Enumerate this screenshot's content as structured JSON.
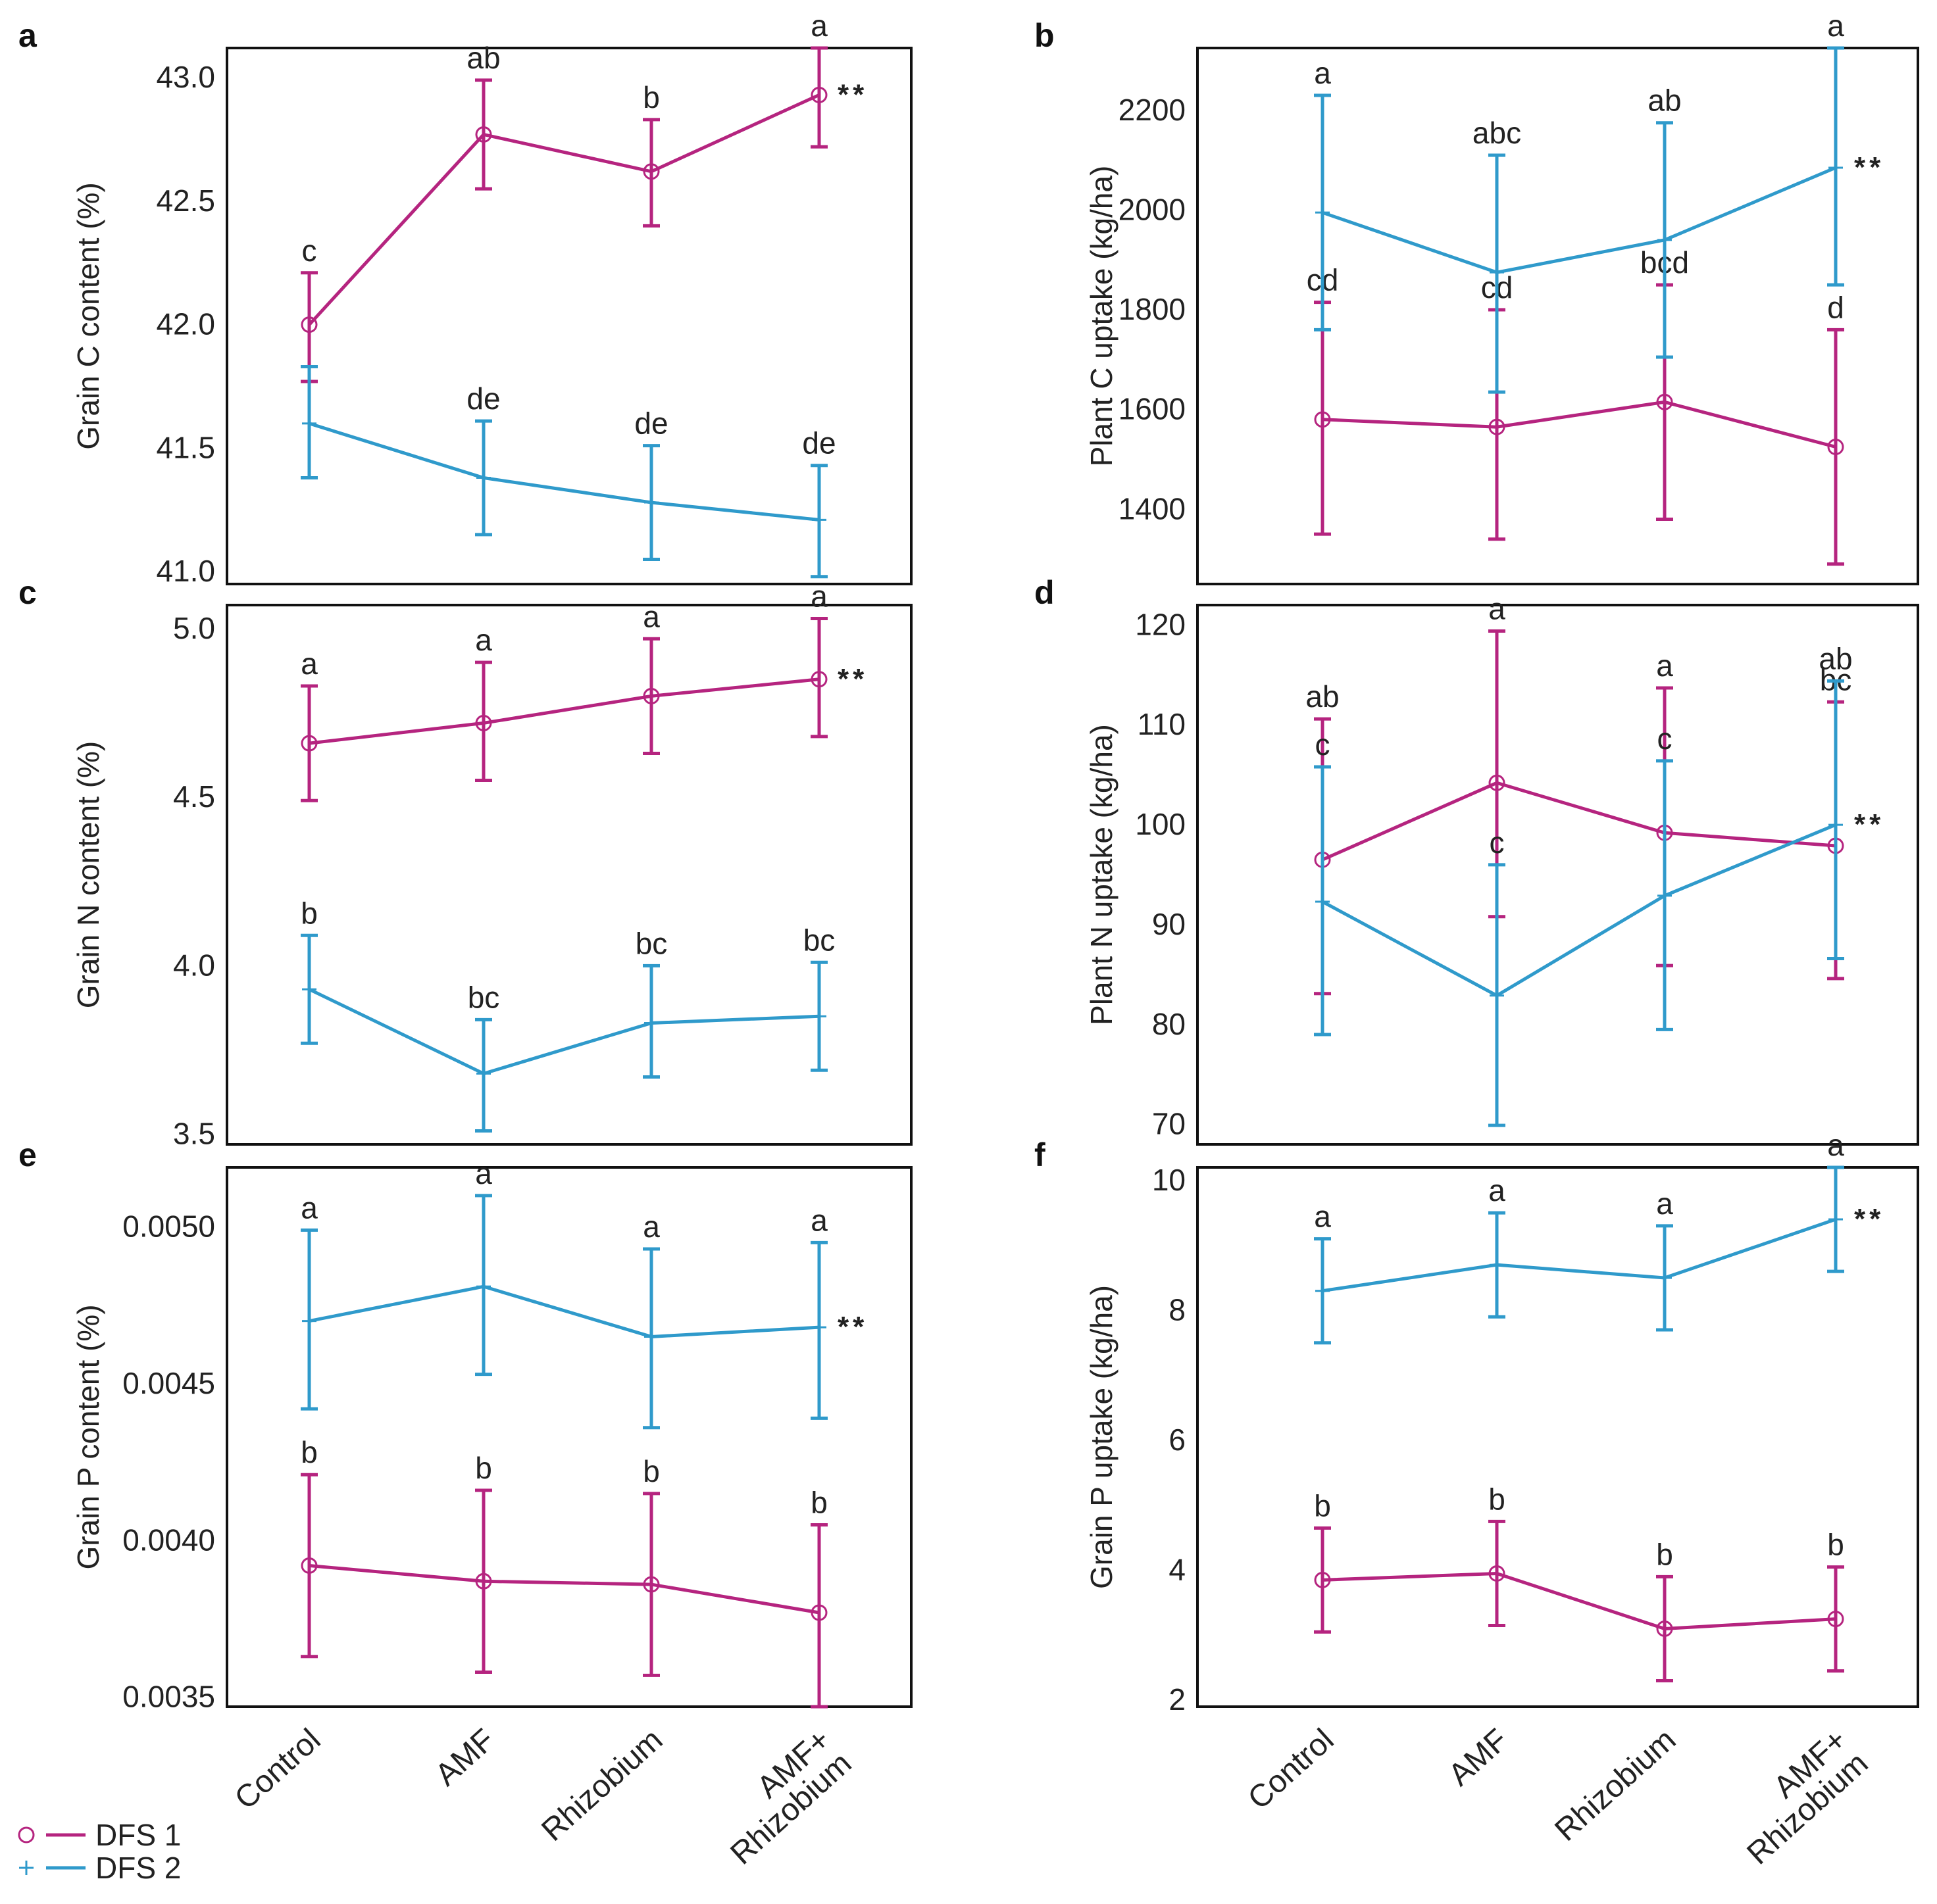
{
  "chart_data": [
    {
      "panel": "a",
      "type": "line",
      "ylabel": "Grain C content (%)",
      "categories": [
        "Control",
        "AMF",
        "Rhizobium",
        "AMF+\nRhizobium"
      ],
      "ylim": [
        40.95,
        43.12
      ],
      "yticks": [
        "41.0",
        "41.5",
        "42.0",
        "42.5",
        "43.0"
      ],
      "series": [
        {
          "name": "DFS 1",
          "values": [
            42.0,
            42.77,
            42.62,
            42.93
          ],
          "err_low": [
            41.77,
            42.55,
            42.4,
            42.72
          ],
          "err_high": [
            42.21,
            42.99,
            42.83,
            43.15
          ],
          "labels": [
            "c",
            "ab",
            "b",
            "a"
          ]
        },
        {
          "name": "DFS 2",
          "values": [
            41.6,
            41.38,
            41.28,
            41.21
          ],
          "err_low": [
            41.38,
            41.15,
            41.05,
            40.98
          ],
          "err_high": [
            41.83,
            41.61,
            41.51,
            41.43
          ],
          "labels": [
            "",
            "de",
            "de",
            "de"
          ]
        }
      ],
      "significance": "**"
    },
    {
      "panel": "b",
      "type": "line",
      "ylabel": "Plant C uptake (kg/ha)",
      "categories": [
        "Control",
        "AMF",
        "Rhizobium",
        "AMF+\nRhizobium"
      ],
      "ylim": [
        1250,
        2325
      ],
      "yticks": [
        "1400",
        "1600",
        "1800",
        "2000",
        "2200"
      ],
      "series": [
        {
          "name": "DFS 1",
          "values": [
            1580,
            1565,
            1615,
            1525
          ],
          "err_low": [
            1350,
            1340,
            1380,
            1290
          ],
          "err_high": [
            1815,
            1800,
            1850,
            1760
          ],
          "labels": [
            "cd",
            "cd",
            "bcd",
            "d"
          ]
        },
        {
          "name": "DFS 2",
          "values": [
            1995,
            1875,
            1940,
            2085
          ],
          "err_low": [
            1760,
            1635,
            1705,
            1850
          ],
          "err_high": [
            2230,
            2110,
            2175,
            2325
          ],
          "labels": [
            "a",
            "abc",
            "ab",
            "a"
          ]
        }
      ],
      "significance": "**"
    },
    {
      "panel": "c",
      "type": "line",
      "ylabel": "Grain N content (%)",
      "categories": [
        "Control",
        "AMF",
        "Rhizobium",
        "AMF+\nRhizobium"
      ],
      "ylim": [
        3.47,
        5.07
      ],
      "yticks": [
        "3.5",
        "4.0",
        "4.5",
        "5.0"
      ],
      "series": [
        {
          "name": "DFS 1",
          "values": [
            4.66,
            4.72,
            4.8,
            4.85
          ],
          "err_low": [
            4.49,
            4.55,
            4.63,
            4.68
          ],
          "err_high": [
            4.83,
            4.9,
            4.97,
            5.03
          ],
          "labels": [
            "a",
            "a",
            "a",
            "a"
          ]
        },
        {
          "name": "DFS 2",
          "values": [
            3.93,
            3.68,
            3.83,
            3.85
          ],
          "err_low": [
            3.77,
            3.51,
            3.67,
            3.69
          ],
          "err_high": [
            4.09,
            3.84,
            4.0,
            4.01
          ],
          "labels": [
            "b",
            "bc",
            "bc",
            "bc"
          ]
        }
      ],
      "significance": "**"
    },
    {
      "panel": "d",
      "type": "line",
      "ylabel": "Plant N uptake (kg/ha)",
      "categories": [
        "Control",
        "AMF",
        "Rhizobium",
        "AMF+\nRhizobium"
      ],
      "ylim": [
        68,
        122
      ],
      "yticks": [
        "70",
        "80",
        "90",
        "100",
        "110",
        "120"
      ],
      "series": [
        {
          "name": "DFS 1",
          "values": [
            96.5,
            104.2,
            99.2,
            97.9
          ],
          "err_low": [
            83.1,
            90.8,
            85.9,
            84.6
          ],
          "err_high": [
            110.6,
            119.4,
            113.7,
            112.3
          ],
          "labels": [
            "ab",
            "a",
            "a",
            "bc"
          ]
        },
        {
          "name": "DFS 2",
          "values": [
            92.3,
            82.9,
            92.9,
            100.0
          ],
          "err_low": [
            79.0,
            69.9,
            79.5,
            86.6
          ],
          "err_high": [
            105.8,
            96.0,
            106.4,
            114.4
          ],
          "labels": [
            "c",
            "c",
            "c",
            "ab"
          ]
        }
      ],
      "significance": "**"
    },
    {
      "panel": "e",
      "type": "line",
      "ylabel": "Grain P content (%)",
      "categories": [
        "Control",
        "AMF",
        "Rhizobium",
        "AMF+\nRhizobium"
      ],
      "ylim": [
        0.00347,
        0.00519
      ],
      "yticks": [
        "0.0035",
        "0.0040",
        "0.0045",
        "0.0050"
      ],
      "series": [
        {
          "name": "DFS 1",
          "values": [
            0.00392,
            0.00387,
            0.00386,
            0.00377
          ],
          "err_low": [
            0.00363,
            0.00358,
            0.00357,
            0.00347
          ],
          "err_high": [
            0.00421,
            0.00416,
            0.00415,
            0.00405
          ],
          "labels": [
            "b",
            "b",
            "b",
            "b"
          ]
        },
        {
          "name": "DFS 2",
          "values": [
            0.0047,
            0.00481,
            0.00465,
            0.00468
          ],
          "err_low": [
            0.00442,
            0.00453,
            0.00436,
            0.00439
          ],
          "err_high": [
            0.00499,
            0.0051,
            0.00493,
            0.00495
          ],
          "labels": [
            "a",
            "a",
            "a",
            "a"
          ]
        }
      ],
      "significance": "**"
    },
    {
      "panel": "f",
      "type": "line",
      "ylabel": "Grain P uptake (kg/ha)",
      "categories": [
        "Control",
        "AMF",
        "Rhizobium",
        "AMF+\nRhizobium"
      ],
      "ylim": [
        1.9,
        10.2
      ],
      "yticks": [
        "2",
        "4",
        "6",
        "8",
        "10"
      ],
      "series": [
        {
          "name": "DFS 1",
          "values": [
            3.85,
            3.95,
            3.1,
            3.25
          ],
          "err_low": [
            3.05,
            3.15,
            2.3,
            2.45
          ],
          "err_high": [
            4.65,
            4.75,
            3.9,
            4.05
          ],
          "labels": [
            "b",
            "b",
            "b",
            "b"
          ]
        },
        {
          "name": "DFS 2",
          "values": [
            8.3,
            8.7,
            8.5,
            9.4
          ],
          "err_low": [
            7.5,
            7.9,
            7.7,
            8.6
          ],
          "err_high": [
            9.1,
            9.5,
            9.3,
            10.2
          ],
          "labels": [
            "a",
            "a",
            "a",
            "a"
          ]
        }
      ],
      "significance": "**"
    }
  ],
  "legend": [
    {
      "name": "DFS 1",
      "marker": "circle",
      "color": "#b5247f"
    },
    {
      "name": "DFS 2",
      "marker": "plus",
      "color": "#2f9acb"
    }
  ],
  "colors": {
    "dfs1": "#b5247f",
    "dfs2": "#2f9acb",
    "axis": "#111111"
  }
}
